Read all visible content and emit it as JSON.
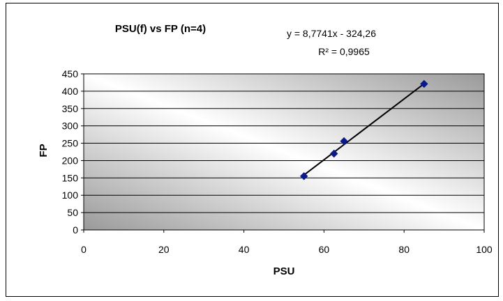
{
  "chart_data": {
    "type": "scatter",
    "title": "PSU(f) vs FP (n=4)",
    "xlabel": "PSU",
    "ylabel": "FP",
    "xlim": [
      0,
      100
    ],
    "ylim": [
      0,
      450
    ],
    "xticks": [
      "0",
      "20",
      "40",
      "60",
      "80",
      "100"
    ],
    "yticks": [
      "0",
      "50",
      "100",
      "150",
      "200",
      "250",
      "300",
      "350",
      "400",
      "450"
    ],
    "grid": "horizontal",
    "series": [
      {
        "points": [
          {
            "x": 55,
            "y": 155
          },
          {
            "x": 62.5,
            "y": 220
          },
          {
            "x": 65,
            "y": 256
          },
          {
            "x": 85,
            "y": 421
          }
        ]
      }
    ],
    "trendline": {
      "type": "linear",
      "slope": 8.7741,
      "intercept": -324.26,
      "equation": "y = 8,7741x - 324,26",
      "r2_label": "R² = 0,9965"
    },
    "colors": {
      "marker": "#0a1a8a",
      "trendline": "#000000"
    }
  }
}
